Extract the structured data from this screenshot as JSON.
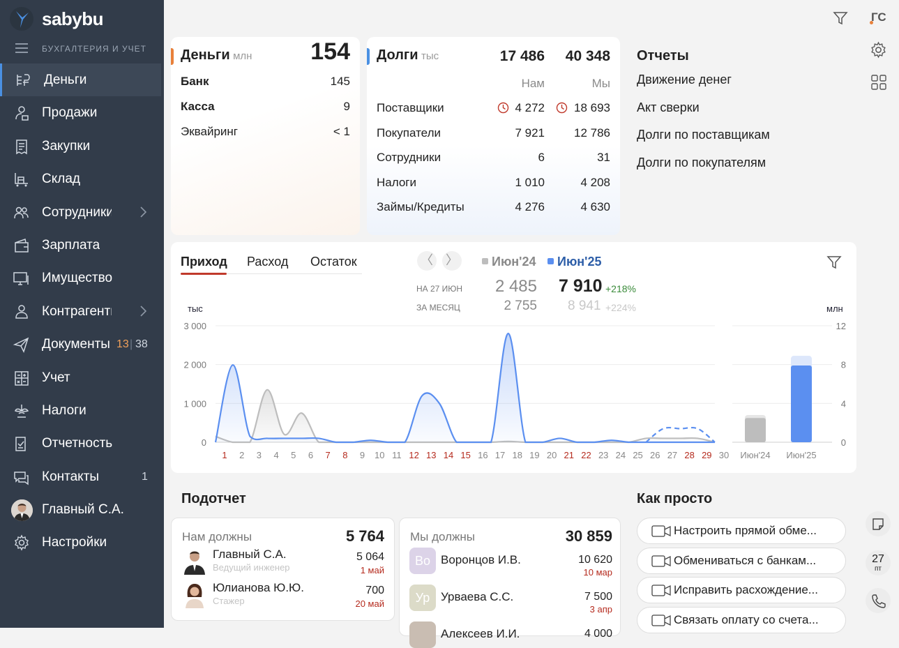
{
  "app": {
    "logo_text": "sabybu",
    "section": "БУХГАЛТЕРИЯ И УЧЕТ",
    "user_initials": "ГС"
  },
  "nav": [
    {
      "label": "Деньги",
      "icon": "money-icon",
      "active": true
    },
    {
      "label": "Продажи",
      "icon": "sales-icon"
    },
    {
      "label": "Закупки",
      "icon": "purchases-icon"
    },
    {
      "label": "Склад",
      "icon": "warehouse-icon"
    },
    {
      "label": "Сотрудники",
      "icon": "employees-icon",
      "arrow": true
    },
    {
      "label": "Зарплата",
      "icon": "salary-icon"
    },
    {
      "label": "Имущество",
      "icon": "property-icon"
    },
    {
      "label": "Контрагенты",
      "icon": "contractors-icon",
      "arrow": true
    },
    {
      "label": "Документы",
      "icon": "documents-icon",
      "count1": "13",
      "count2": "38"
    },
    {
      "label": "Учет",
      "icon": "accounting-icon"
    },
    {
      "label": "Налоги",
      "icon": "taxes-icon"
    },
    {
      "label": "Отчетность",
      "icon": "reporting-icon"
    },
    {
      "label": "Контакты",
      "icon": "contacts-icon",
      "count": "1"
    },
    {
      "label": "Главный С.А.",
      "icon": "avatar"
    },
    {
      "label": "Настройки",
      "icon": "settings-icon"
    }
  ],
  "money": {
    "title": "Деньги",
    "unit": "млн",
    "total": "154",
    "rows": [
      {
        "label": "Банк",
        "value": "145",
        "bold": true
      },
      {
        "label": "Касса",
        "value": "9",
        "bold": true
      },
      {
        "label": "Эквайринг",
        "value": "< 1"
      }
    ]
  },
  "debts": {
    "title": "Долги",
    "unit": "тыс",
    "total_us": "17 486",
    "total_we": "40 348",
    "col_us": "Нам",
    "col_we": "Мы",
    "rows": [
      {
        "label": "Поставщики",
        "us": "4 272",
        "we": "18 693",
        "overdue": true
      },
      {
        "label": "Покупатели",
        "us": "7 921",
        "we": "12 786"
      },
      {
        "label": "Сотрудники",
        "us": "6",
        "we": "31"
      },
      {
        "label": "Налоги",
        "us": "1 010",
        "we": "4 208"
      },
      {
        "label": "Займы/Кредиты",
        "us": "4 276",
        "we": "4 630"
      }
    ]
  },
  "reports": {
    "title": "Отчеты",
    "items": [
      "Движение денег",
      "Акт сверки",
      "Долги по поставщикам",
      "Долги по покупателям"
    ]
  },
  "chart_panel": {
    "tabs": [
      "Приход",
      "Расход",
      "Остаток"
    ],
    "legend_prev": "Июн'24",
    "legend_cur": "Июн'25",
    "row1_label": "НА 27 ИЮН",
    "row1_prev": "2 485",
    "row1_cur": "7 910",
    "row1_delta": "+218%",
    "row2_label": "ЗА МЕСЯЦ",
    "row2_prev": "2 755",
    "row2_cur": "8 941",
    "row2_delta": "+224%"
  },
  "chart_data": [
    {
      "type": "area",
      "ylabel": "тыс",
      "ylim": [
        0,
        3000
      ],
      "yticks": [
        "3 000",
        "2 000",
        "1 000",
        "0"
      ],
      "x": [
        "1",
        "2",
        "3",
        "4",
        "5",
        "6",
        "7",
        "8",
        "9",
        "10",
        "11",
        "12",
        "13",
        "14",
        "15",
        "16",
        "17",
        "18",
        "19",
        "20",
        "21",
        "22",
        "23",
        "24",
        "25",
        "26",
        "27",
        "28",
        "29",
        "30"
      ],
      "weekend": [
        1,
        7,
        8,
        12,
        13,
        14,
        15,
        21,
        22,
        28,
        29
      ],
      "series": [
        {
          "name": "Июн'24",
          "color": "#bdbdbd",
          "values": [
            150,
            0,
            0,
            1350,
            200,
            750,
            0,
            0,
            0,
            0,
            0,
            0,
            0,
            0,
            0,
            0,
            0,
            20,
            0,
            0,
            0,
            0,
            0,
            0,
            0,
            100,
            100,
            100,
            100,
            0
          ]
        },
        {
          "name": "Июн'25",
          "color": "#5b8ff0",
          "values": [
            0,
            1990,
            150,
            100,
            100,
            100,
            100,
            0,
            0,
            50,
            0,
            0,
            1200,
            1000,
            0,
            0,
            0,
            2800,
            0,
            0,
            100,
            0,
            0,
            50,
            0,
            0,
            0,
            0,
            0,
            0
          ],
          "projected": [
            0,
            0,
            0,
            0,
            0,
            0,
            0,
            0,
            0,
            0,
            0,
            0,
            0,
            0,
            0,
            0,
            0,
            0,
            0,
            0,
            0,
            0,
            0,
            0,
            0,
            0,
            350,
            350,
            350,
            0
          ]
        }
      ]
    },
    {
      "type": "bar",
      "ylabel": "млн",
      "ylim": [
        0,
        12
      ],
      "yticks": [
        "12",
        "8",
        "4",
        "0"
      ],
      "categories": [
        "Июн'24",
        "Июн'25"
      ],
      "values": [
        2.5,
        7.9
      ],
      "projected": [
        2.8,
        8.9
      ]
    }
  ],
  "podotchet": {
    "title": "Подотчет",
    "owed_to_us": {
      "label": "Нам должны",
      "total": "5 764",
      "people": [
        {
          "name": "Главный С.А.",
          "role": "Ведущий инженер",
          "amount": "5 064",
          "date": "1 май"
        },
        {
          "name": "Юлианова Ю.Ю.",
          "role": "Стажер",
          "amount": "700",
          "date": "20 май"
        }
      ]
    },
    "we_owe": {
      "label": "Мы должны",
      "total": "30 859",
      "people": [
        {
          "name": "Воронцов И.В.",
          "initials": "Во",
          "amount": "10 620",
          "date": "10 мар"
        },
        {
          "name": "Урваева С.С.",
          "initials": "Ур",
          "amount": "7 500",
          "date": "3 апр"
        },
        {
          "name": "Алексеев И.И.",
          "amount": "4 000"
        }
      ]
    }
  },
  "how": {
    "title": "Как просто",
    "items": [
      "Настроить прямой обме...",
      "Обмениваться с банкам...",
      "Исправить расхождение...",
      "Связать оплату со счета..."
    ]
  },
  "right_rail": {
    "date_day": "27",
    "date_weekday": "пт"
  }
}
